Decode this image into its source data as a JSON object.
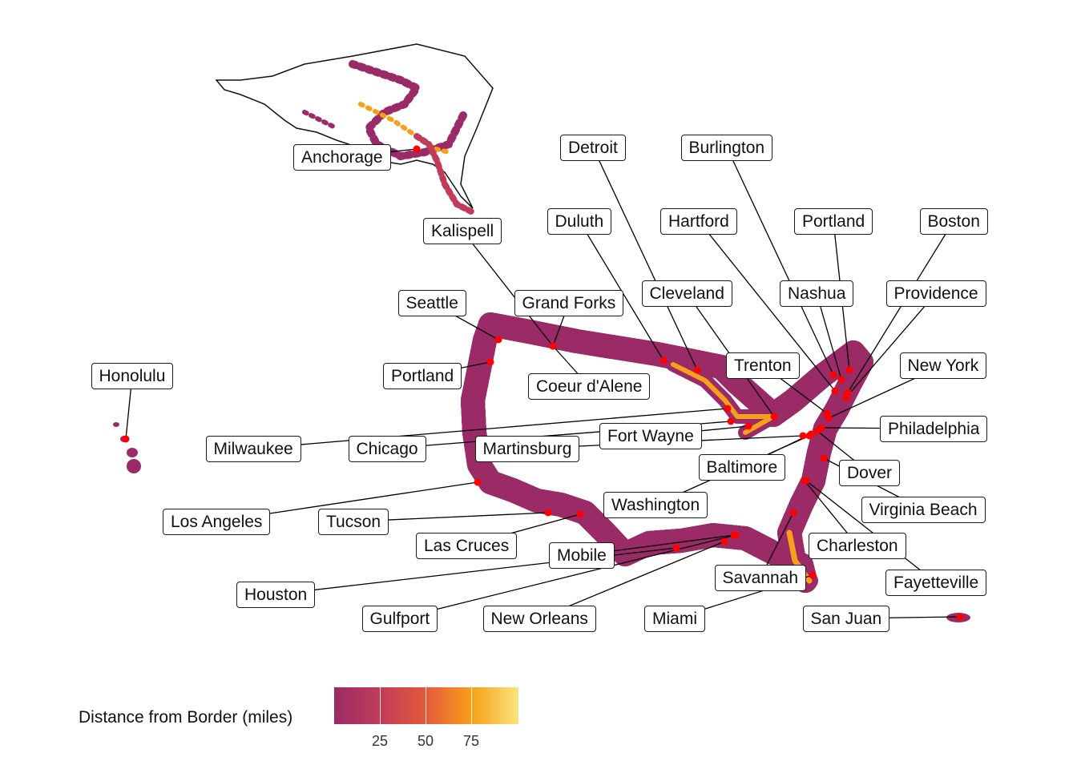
{
  "map": {
    "legend": {
      "title": "Distance from Border (miles)",
      "ticks": [
        "25",
        "50",
        "75"
      ],
      "colors": [
        "#9b2b67",
        "#c03c58",
        "#e45a3a",
        "#f7a11a",
        "#fbe47c"
      ]
    },
    "point_color": "#ff0000",
    "cities": [
      {
        "id": "anchorage",
        "name": "Anchorage"
      },
      {
        "id": "kalispell",
        "name": "Kalispell"
      },
      {
        "id": "detroit",
        "name": "Detroit"
      },
      {
        "id": "burlington",
        "name": "Burlington"
      },
      {
        "id": "duluth",
        "name": "Duluth"
      },
      {
        "id": "hartford",
        "name": "Hartford"
      },
      {
        "id": "portland-me",
        "name": "Portland"
      },
      {
        "id": "boston",
        "name": "Boston"
      },
      {
        "id": "seattle",
        "name": "Seattle"
      },
      {
        "id": "grand-forks",
        "name": "Grand Forks"
      },
      {
        "id": "cleveland",
        "name": "Cleveland"
      },
      {
        "id": "nashua",
        "name": "Nashua"
      },
      {
        "id": "providence",
        "name": "Providence"
      },
      {
        "id": "honolulu",
        "name": "Honolulu"
      },
      {
        "id": "portland-or",
        "name": "Portland"
      },
      {
        "id": "coeur-dalene",
        "name": "Coeur d'Alene"
      },
      {
        "id": "trenton",
        "name": "Trenton"
      },
      {
        "id": "new-york",
        "name": "New York"
      },
      {
        "id": "fort-wayne",
        "name": "Fort Wayne"
      },
      {
        "id": "philadelphia",
        "name": "Philadelphia"
      },
      {
        "id": "milwaukee",
        "name": "Milwaukee"
      },
      {
        "id": "chicago",
        "name": "Chicago"
      },
      {
        "id": "martinsburg",
        "name": "Martinsburg"
      },
      {
        "id": "baltimore",
        "name": "Baltimore"
      },
      {
        "id": "dover",
        "name": "Dover"
      },
      {
        "id": "los-angeles",
        "name": "Los Angeles"
      },
      {
        "id": "tucson",
        "name": "Tucson"
      },
      {
        "id": "washington",
        "name": "Washington"
      },
      {
        "id": "virginia-beach",
        "name": "Virginia Beach"
      },
      {
        "id": "las-cruces",
        "name": "Las Cruces"
      },
      {
        "id": "mobile",
        "name": "Mobile"
      },
      {
        "id": "charleston",
        "name": "Charleston"
      },
      {
        "id": "houston",
        "name": "Houston"
      },
      {
        "id": "savannah",
        "name": "Savannah"
      },
      {
        "id": "fayetteville",
        "name": "Fayetteville"
      },
      {
        "id": "gulfport",
        "name": "Gulfport"
      },
      {
        "id": "new-orleans",
        "name": "New Orleans"
      },
      {
        "id": "miami",
        "name": "Miami"
      },
      {
        "id": "san-juan",
        "name": "San Juan"
      }
    ]
  }
}
